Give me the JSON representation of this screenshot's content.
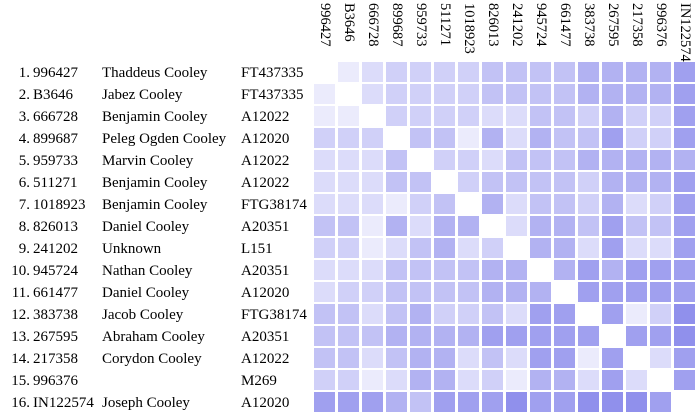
{
  "chart_data": {
    "type": "heatmap",
    "title": "",
    "column_labels": [
      "996427",
      "B3646",
      "666728",
      "899687",
      "959733",
      "511271",
      "1018923",
      "826013",
      "241202",
      "945724",
      "661477",
      "383738",
      "267595",
      "217358",
      "996376",
      "IN122574"
    ],
    "row_labels": [
      "996427",
      "B3646",
      "666728",
      "899687",
      "959733",
      "511271",
      "1018923",
      "826013",
      "241202",
      "945724",
      "661477",
      "383738",
      "267595",
      "217358",
      "996376",
      "IN122574"
    ],
    "values": [
      [
        0,
        1,
        2,
        3,
        3,
        3,
        3,
        4,
        4,
        4,
        4,
        5,
        5,
        5,
        5,
        6
      ],
      [
        1,
        0,
        2,
        3,
        3,
        3,
        3,
        4,
        4,
        4,
        4,
        5,
        5,
        5,
        5,
        6
      ],
      [
        1,
        1,
        0,
        3,
        3,
        3,
        3,
        2,
        2,
        4,
        4,
        3,
        5,
        3,
        3,
        6
      ],
      [
        3,
        3,
        3,
        0,
        4,
        4,
        1,
        5,
        2,
        5,
        4,
        4,
        6,
        3,
        3,
        6
      ],
      [
        2,
        2,
        2,
        4,
        0,
        3,
        3,
        2,
        4,
        4,
        4,
        5,
        5,
        5,
        5,
        5
      ],
      [
        2,
        2,
        2,
        4,
        4,
        0,
        3,
        4,
        4,
        4,
        4,
        3,
        5,
        5,
        5,
        6
      ],
      [
        2,
        2,
        2,
        1,
        3,
        4,
        0,
        5,
        2,
        4,
        4,
        3,
        5,
        2,
        3,
        6
      ],
      [
        4,
        4,
        1,
        5,
        2,
        5,
        5,
        0,
        2,
        5,
        5,
        4,
        6,
        4,
        4,
        6
      ],
      [
        3,
        3,
        1,
        2,
        4,
        5,
        2,
        3,
        0,
        5,
        5,
        2,
        6,
        2,
        2,
        6
      ],
      [
        2,
        2,
        2,
        4,
        4,
        4,
        4,
        5,
        5,
        0,
        5,
        6,
        5,
        6,
        6,
        6
      ],
      [
        2,
        3,
        3,
        4,
        4,
        4,
        4,
        5,
        5,
        5,
        0,
        6,
        6,
        6,
        6,
        6
      ],
      [
        4,
        4,
        2,
        4,
        5,
        3,
        3,
        4,
        2,
        6,
        6,
        0,
        6,
        1,
        3,
        7
      ],
      [
        4,
        4,
        4,
        5,
        5,
        5,
        5,
        6,
        6,
        6,
        6,
        6,
        0,
        6,
        6,
        7
      ],
      [
        4,
        4,
        2,
        4,
        5,
        5,
        2,
        4,
        2,
        6,
        6,
        1,
        6,
        0,
        2,
        6
      ],
      [
        3,
        3,
        1,
        2,
        5,
        5,
        2,
        3,
        1,
        5,
        5,
        2,
        6,
        2,
        0,
        6
      ],
      [
        6,
        6,
        6,
        5,
        4,
        6,
        6,
        6,
        7,
        6,
        6,
        7,
        7,
        7,
        6,
        0
      ]
    ],
    "value_scale": {
      "description": "Color intensity level read from pixels: 0 = white (diagonal / self-match), 1 = lightest lavender (closest), 7 = darkest periwinkle (most distant)",
      "palette": [
        "#ffffff",
        "#ebebfc",
        "#dcdcfa",
        "#d0d0f8",
        "#c2c2f5",
        "#b2b2f2",
        "#a0a0ef",
        "#9090ec"
      ]
    },
    "legend_position": "none",
    "grid": "white 3px gutters between cells"
  },
  "table": {
    "rows": [
      {
        "num": "1.",
        "id": "996427",
        "name": "Thaddeus Cooley",
        "haplogroup": "FT437335"
      },
      {
        "num": "2.",
        "id": "B3646",
        "name": "Jabez Cooley",
        "haplogroup": "FT437335"
      },
      {
        "num": "3.",
        "id": "666728",
        "name": "Benjamin Cooley",
        "haplogroup": "A12022"
      },
      {
        "num": "4.",
        "id": "899687",
        "name": "Peleg Ogden Cooley",
        "haplogroup": "A12020"
      },
      {
        "num": "5.",
        "id": "959733",
        "name": "Marvin Cooley",
        "haplogroup": "A12022"
      },
      {
        "num": "6.",
        "id": "511271",
        "name": "Benjamin Cooley",
        "haplogroup": "A12022"
      },
      {
        "num": "7.",
        "id": "1018923",
        "name": "Benjamin Cooley",
        "haplogroup": "FTG38174"
      },
      {
        "num": "8.",
        "id": "826013",
        "name": "Daniel Cooley",
        "haplogroup": "A20351"
      },
      {
        "num": "9.",
        "id": "241202",
        "name": "Unknown",
        "haplogroup": "L151"
      },
      {
        "num": "10.",
        "id": "945724",
        "name": "Nathan Cooley",
        "haplogroup": "A20351"
      },
      {
        "num": "11.",
        "id": "661477",
        "name": "Daniel Cooley",
        "haplogroup": "A12020"
      },
      {
        "num": "12.",
        "id": "383738",
        "name": "Jacob Cooley",
        "haplogroup": "FTG38174"
      },
      {
        "num": "13.",
        "id": "267595",
        "name": "Abraham Cooley",
        "haplogroup": "A20351"
      },
      {
        "num": "14.",
        "id": "217358",
        "name": "Corydon Cooley",
        "haplogroup": "A12022"
      },
      {
        "num": "15.",
        "id": "996376",
        "name": "",
        "haplogroup": "M269"
      },
      {
        "num": "16.",
        "id": "IN122574",
        "name": "Joseph Cooley",
        "haplogroup": "A12020"
      }
    ]
  },
  "colors": {
    "background": "#ffffff",
    "text": "#000000"
  }
}
